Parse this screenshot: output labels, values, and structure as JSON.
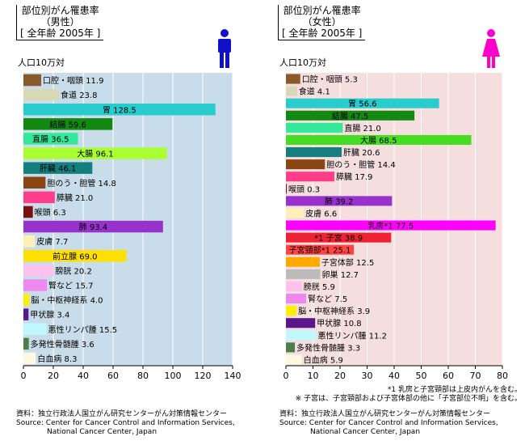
{
  "male": {
    "title_lines": [
      "部位別がん罹患率",
      "（男性）",
      "[ 全年齢 2005年 ]"
    ],
    "unit": "人口10万対",
    "icon": "male-figure-icon",
    "icon_color": "#1010c8",
    "background": "#c9dcea"
  },
  "female": {
    "title_lines": [
      "部位別がん罹患率",
      "（女性）",
      "[ 全年齢 2005年 ]"
    ],
    "unit": "人口10万対",
    "icon": "female-figure-icon",
    "icon_color": "#ff00cc",
    "background": "#f5dede"
  },
  "chart_data": [
    {
      "type": "bar",
      "orientation": "horizontal",
      "title": "部位別がん罹患率（男性） [ 全年齢 2005年 ]",
      "ylabel": "人口10万対",
      "xlim": [
        0,
        140
      ],
      "xticks": [
        0,
        20,
        40,
        60,
        80,
        100,
        120,
        140
      ],
      "grid": true,
      "categories": [
        "口腔・咽頭",
        "食道",
        "胃",
        "結腸",
        "直腸",
        "大腸",
        "肝臓",
        "胆のう・胆管",
        "膵臓",
        "喉頭",
        "肺",
        "皮膚",
        "前立腺",
        "膀胱",
        "腎など",
        "脳・中枢神経系",
        "甲状腺",
        "悪性リンパ腫",
        "多発性骨髄腫",
        "白血病"
      ],
      "values": [
        11.9,
        23.8,
        128.5,
        59.6,
        36.5,
        96.1,
        46.1,
        14.8,
        21.0,
        6.3,
        93.4,
        7.7,
        69.0,
        20.2,
        15.7,
        4.0,
        3.4,
        15.5,
        3.6,
        8.3
      ],
      "value_labels": [
        "11.9",
        "23.8",
        "128.5",
        "59.6",
        "36.5",
        "96.1",
        "46.1",
        "14.8",
        "21.0",
        "6.3",
        "93.4",
        "7.7",
        "69.0",
        "20.2",
        "15.7",
        "4.0",
        "3.4",
        "15.5",
        "3.6",
        "8.3"
      ],
      "inside_label": [
        false,
        false,
        true,
        true,
        true,
        true,
        true,
        false,
        false,
        false,
        true,
        false,
        true,
        false,
        false,
        false,
        false,
        false,
        false,
        false
      ],
      "colors": [
        "#8b5a2b",
        "#d8d8b8",
        "#28cccc",
        "#128a12",
        "#33e899",
        "#aaff33",
        "#147f7f",
        "#8b4513",
        "#ff3d8b",
        "#7a1010",
        "#9932cc",
        "#fff0b8",
        "#ffe000",
        "#ffc0ee",
        "#ee88ee",
        "#ffee00",
        "#5a168a",
        "#bff8ff",
        "#4a7f4a",
        "#fff8e0"
      ]
    },
    {
      "type": "bar",
      "orientation": "horizontal",
      "title": "部位別がん罹患率（女性） [ 全年齢 2005年 ]",
      "ylabel": "人口10万対",
      "xlim": [
        0,
        80
      ],
      "xticks": [
        0,
        10,
        20,
        30,
        40,
        50,
        60,
        70,
        80
      ],
      "grid": true,
      "categories": [
        "口腔・咽頭",
        "食道",
        "胃",
        "結腸",
        "直腸",
        "大腸",
        "肝臓",
        "胆のう・胆管",
        "膵臓",
        "喉頭",
        "肺",
        "皮膚",
        "乳房",
        "子宮",
        "子宮頸部",
        "子宮体部",
        "卵巣",
        "膀胱",
        "腎など",
        "脳・中枢神経系",
        "甲状腺",
        "悪性リンパ腫",
        "多発性骨髄腫",
        "白血病"
      ],
      "values": [
        5.3,
        4.1,
        56.6,
        47.5,
        21.0,
        68.5,
        20.6,
        14.4,
        17.9,
        0.3,
        39.2,
        6.6,
        77.5,
        38.9,
        25.1,
        12.5,
        12.7,
        5.9,
        7.5,
        3.9,
        10.8,
        11.2,
        3.3,
        5.9
      ],
      "value_labels": [
        "5.3",
        "4.1",
        "56.6",
        "47.5",
        "21.0",
        "68.5",
        "20.6",
        "14.4",
        "17.9",
        "0.3",
        "39.2",
        "6.6",
        "77.5",
        "38.9",
        "25.1",
        "12.5",
        "12.7",
        "5.9",
        "7.5",
        "3.9",
        "10.8",
        "11.2",
        "3.3",
        "5.9"
      ],
      "label_prefixes": [
        "",
        "",
        "",
        "",
        "",
        "",
        "",
        "",
        "",
        "",
        "",
        "",
        "",
        "*1 ",
        "",
        "",
        "",
        "",
        "",
        "",
        "",
        "",
        "",
        ""
      ],
      "label_suffixes": [
        "",
        "",
        "",
        "",
        "",
        "",
        "",
        "",
        "",
        "",
        "",
        "",
        "*1",
        "",
        "*1",
        "",
        "",
        "",
        "",
        "",
        "",
        "",
        "",
        ""
      ],
      "inside_label": [
        false,
        false,
        true,
        true,
        false,
        true,
        false,
        false,
        false,
        false,
        true,
        false,
        true,
        true,
        true,
        false,
        false,
        false,
        false,
        false,
        false,
        false,
        false,
        false
      ],
      "colors": [
        "#8b5a2b",
        "#d8d8b8",
        "#28cccc",
        "#128a12",
        "#33e899",
        "#44dd22",
        "#147f7f",
        "#8b4513",
        "#ff3d8b",
        "#7a1010",
        "#9932cc",
        "#fff0b8",
        "#ff00ff",
        "#ee2233",
        "#ff4444",
        "#ffaa00",
        "#bbbbbb",
        "#ffc0ee",
        "#ee88ee",
        "#ffee00",
        "#5a168a",
        "#bff8ff",
        "#4a7f4a",
        "#fff8e0"
      ]
    }
  ],
  "notes": [
    "*1 乳房と子宮頸部は上皮内がんを含む。",
    "※ 子宮は、子宮頸部および子宮体部の他に「子宮部位不明」を含む。"
  ],
  "source_left": [
    "資料：独立行政法人国立がん研究センターがん対策情報センター",
    "Source: Center for Cancer Control and Information Services,",
    "National Cancer Center, Japan"
  ],
  "source_right": [
    "資料：独立行政法人国立がん研究センターがん対策情報センター",
    "Source: Center for Cancer Control and Information Services,",
    "National Cancer Center, Japan"
  ]
}
